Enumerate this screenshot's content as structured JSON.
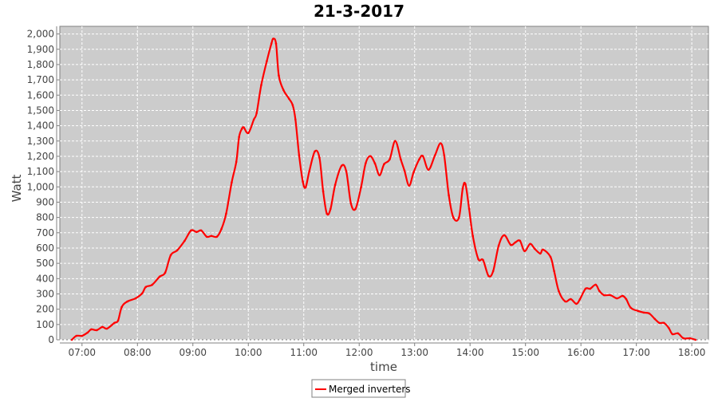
{
  "chart_data": {
    "type": "line",
    "title": "21-3-2017",
    "xlabel": "time",
    "ylabel": "Watt",
    "xlim": [
      "06:36",
      "18:18"
    ],
    "ylim": [
      0,
      2050
    ],
    "grid": true,
    "legend_position": "bottom",
    "x_ticks": [
      "07:00",
      "08:00",
      "09:00",
      "10:00",
      "11:00",
      "12:00",
      "13:00",
      "14:00",
      "15:00",
      "16:00",
      "17:00",
      "18:00"
    ],
    "y_ticks": [
      0,
      100,
      200,
      300,
      400,
      500,
      600,
      700,
      800,
      900,
      1000,
      1100,
      1200,
      1300,
      1400,
      1500,
      1600,
      1700,
      1800,
      1900,
      2000
    ],
    "y_tick_labels": [
      "0",
      "100",
      "200",
      "300",
      "400",
      "500",
      "600",
      "700",
      "800",
      "900",
      "1,000",
      "1,100",
      "1,200",
      "1,300",
      "1,400",
      "1,500",
      "1,600",
      "1,700",
      "1,800",
      "1,900",
      "2,000"
    ],
    "colors": {
      "series": "#ff0000",
      "plot_background": "#cccccc",
      "grid": "#ffffff"
    },
    "series": [
      {
        "name": "Merged inverters",
        "x": [
          "06:49",
          "06:54",
          "07:00",
          "07:06",
          "07:10",
          "07:16",
          "07:22",
          "07:27",
          "07:35",
          "07:39",
          "07:43",
          "07:49",
          "07:58",
          "08:05",
          "08:09",
          "08:16",
          "08:24",
          "08:30",
          "08:36",
          "08:43",
          "08:51",
          "08:58",
          "09:04",
          "09:09",
          "09:15",
          "09:20",
          "09:26",
          "09:31",
          "09:36",
          "09:42",
          "09:47",
          "09:50",
          "09:53",
          "09:55",
          "10:00",
          "10:06",
          "10:09",
          "10:14",
          "10:20",
          "10:25",
          "10:27",
          "10:30",
          "10:33",
          "10:38",
          "10:44",
          "10:48",
          "10:51",
          "10:55",
          "10:59",
          "11:02",
          "11:06",
          "11:12",
          "11:17",
          "11:21",
          "11:25",
          "11:29",
          "11:34",
          "11:41",
          "11:46",
          "11:51",
          "11:56",
          "12:02",
          "12:07",
          "12:12",
          "12:17",
          "12:22",
          "12:27",
          "12:33",
          "12:39",
          "12:45",
          "12:49",
          "12:54",
          "12:59",
          "13:05",
          "13:09",
          "13:15",
          "13:22",
          "13:28",
          "13:32",
          "13:37",
          "13:42",
          "13:48",
          "13:52",
          "13:55",
          "13:59",
          "14:03",
          "14:09",
          "14:14",
          "14:20",
          "14:25",
          "14:31",
          "14:37",
          "14:44",
          "14:49",
          "14:54",
          "14:59",
          "15:05",
          "15:10",
          "15:16",
          "15:19",
          "15:27",
          "15:31",
          "15:36",
          "15:43",
          "15:49",
          "15:55",
          "15:59",
          "16:05",
          "16:10",
          "16:16",
          "16:20",
          "16:25",
          "16:32",
          "16:39",
          "16:45",
          "16:49",
          "16:54",
          "17:02",
          "17:08",
          "17:14",
          "17:20",
          "17:25",
          "17:30",
          "17:35",
          "17:39",
          "17:45",
          "17:51",
          "17:58",
          "18:04"
        ],
        "values": [
          0,
          26,
          26,
          47,
          68,
          63,
          84,
          73,
          110,
          125,
          214,
          250,
          271,
          303,
          345,
          360,
          413,
          439,
          553,
          585,
          647,
          715,
          705,
          715,
          674,
          679,
          674,
          726,
          825,
          1029,
          1164,
          1326,
          1379,
          1389,
          1352,
          1441,
          1483,
          1666,
          1822,
          1937,
          1969,
          1937,
          1728,
          1634,
          1577,
          1535,
          1441,
          1206,
          1034,
          997,
          1102,
          1232,
          1191,
          971,
          825,
          856,
          1013,
          1138,
          1102,
          893,
          856,
          997,
          1154,
          1201,
          1154,
          1076,
          1149,
          1180,
          1300,
          1180,
          1107,
          1008,
          1097,
          1180,
          1201,
          1112,
          1206,
          1285,
          1206,
          945,
          799,
          799,
          987,
          1018,
          856,
          679,
          527,
          522,
          418,
          449,
          616,
          684,
          621,
          637,
          648,
          580,
          627,
          595,
          564,
          590,
          543,
          449,
          319,
          251,
          266,
          235,
          266,
          334,
          334,
          360,
          319,
          292,
          292,
          271,
          287,
          266,
          209,
          188,
          178,
          172,
          136,
          110,
          110,
          78,
          37,
          42,
          10,
          10,
          0
        ]
      }
    ]
  }
}
